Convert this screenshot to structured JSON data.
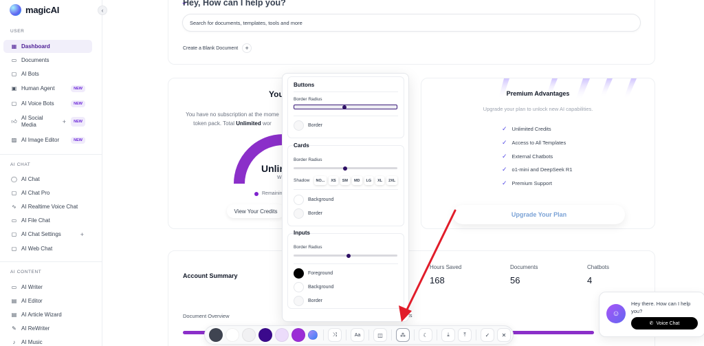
{
  "app": {
    "name": "magicAI"
  },
  "sidebar": {
    "sections": {
      "user": "USER",
      "ai_chat": "AI CHAT",
      "ai_content": "AI CONTENT"
    },
    "user_items": [
      {
        "label": "Dashboard",
        "icon": "grid-icon"
      },
      {
        "label": "Documents",
        "icon": "folder-icon"
      },
      {
        "label": "AI Bots",
        "icon": "bot-icon"
      },
      {
        "label": "Human Agent",
        "icon": "chat-bubble-icon",
        "badge": "NEW"
      },
      {
        "label": "AI Voice Bots",
        "icon": "voice-bot-icon",
        "badge": "NEW"
      },
      {
        "label": "AI Social",
        "label2": "Media",
        "icon": "thumbs-up-icon",
        "badge": "NEW"
      },
      {
        "label": "AI Image Editor",
        "icon": "image-icon",
        "badge": "NEW"
      }
    ],
    "chat_items": [
      {
        "label": "AI Chat",
        "icon": "chat-icon"
      },
      {
        "label": "AI Chat Pro",
        "icon": "chat-pro-icon"
      },
      {
        "label": "AI Realtime Voice Chat",
        "icon": "waveform-icon"
      },
      {
        "label": "AI File Chat",
        "icon": "file-icon"
      },
      {
        "label": "AI Chat Settings",
        "icon": "chat-settings-icon"
      },
      {
        "label": "AI Web Chat",
        "icon": "web-chat-icon"
      }
    ],
    "content_items": [
      {
        "label": "AI Writer",
        "icon": "writer-icon"
      },
      {
        "label": "AI Editor",
        "icon": "editor-icon"
      },
      {
        "label": "AI Article Wizard",
        "icon": "wand-icon"
      },
      {
        "label": "AI ReWriter",
        "icon": "rewriter-icon"
      },
      {
        "label": "AI Music",
        "icon": "music-icon"
      }
    ]
  },
  "main": {
    "greeting": "Hey, How can I help you?",
    "search_placeholder": "Search for documents, templates, tools and more",
    "blank_document": "Create a Blank Document",
    "subscription": {
      "title": "Your",
      "text_1": "You have no subscription at the mome",
      "text_2": "token pack. Total",
      "text_bold": "Unlimited",
      "text_3": "wor",
      "gauge_text": "Unlin",
      "gauge_sub": "W",
      "remaining": "Remainin",
      "view_credits": "View Your Credits"
    },
    "premium": {
      "title": "Premium Advantages",
      "subtitle": "Upgrade your plan to unlock new AI capabilities.",
      "features": [
        "Unlimited Credits",
        "Access to All Templates",
        "External Chatbots",
        "o1-mini and DeepSeek R1",
        "Premium Support"
      ],
      "upgrade_button": "Upgrade Your Plan"
    },
    "account_summary": {
      "title": "Account Summary",
      "stats": [
        {
          "label": "Hours Saved",
          "value": "168"
        },
        {
          "label": "Documents",
          "value": "56"
        },
        {
          "label": "Chatbots",
          "value": "4"
        }
      ],
      "document_overview": "Document Overview",
      "partial_label": "ts"
    }
  },
  "popover": {
    "buttons": {
      "title": "Buttons",
      "border_radius": "Border Radius",
      "border": "Border"
    },
    "cards": {
      "title": "Cards",
      "border_radius": "Border Radius",
      "shadow": "Shadow",
      "shadow_options": [
        "NO...",
        "XS",
        "SM",
        "MD",
        "LG",
        "XL",
        "2XL"
      ],
      "background": "Background",
      "border": "Border"
    },
    "inputs": {
      "title": "Inputs",
      "border_radius": "Border Radius",
      "foreground": "Foreground",
      "background": "Background",
      "border": "Border"
    }
  },
  "toolbar": {
    "colors": [
      "#3f4451",
      "#ffffff",
      "#f1f1f3",
      "#3b0a8c",
      "#ecdcfb",
      "#9b2ed6"
    ],
    "gradient_icon": "gradient-swatch-icon",
    "buttons": [
      "shuffle-icon",
      "font-icon",
      "layout-icon",
      "components-icon",
      "moon-icon",
      "download-icon",
      "upload-icon",
      "check-icon",
      "close-icon"
    ]
  },
  "chat_widget": {
    "text": "Hey there. How can I help you?",
    "voice_button": "Voice Chat"
  }
}
